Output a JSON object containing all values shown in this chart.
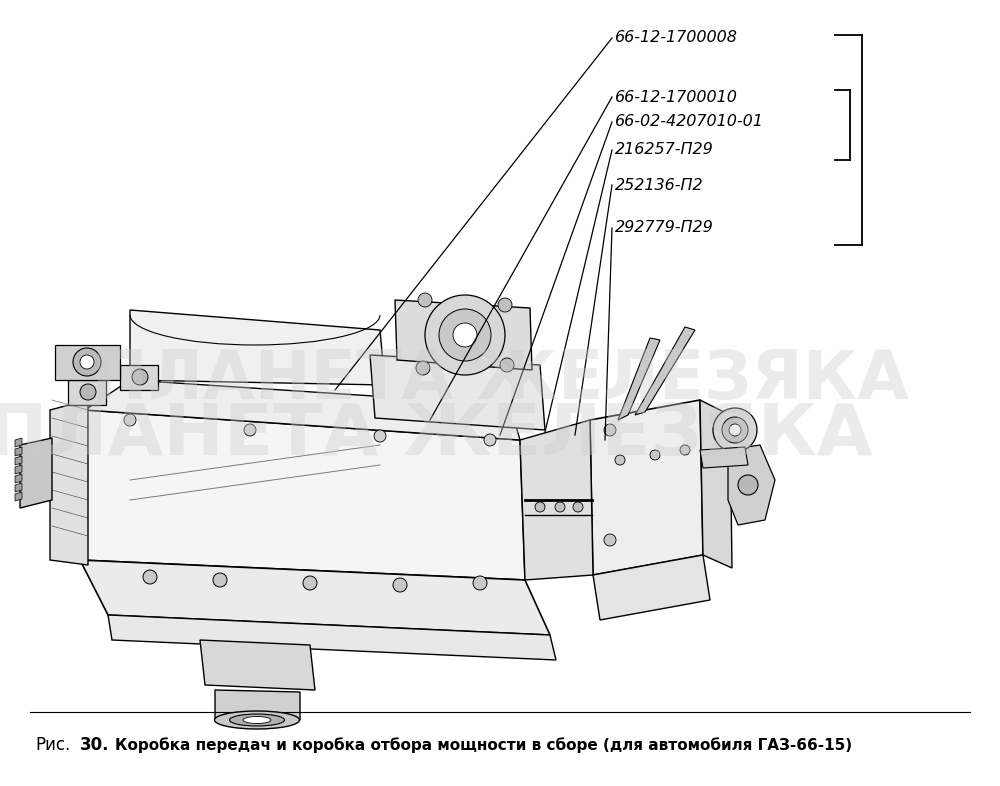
{
  "title_caption_rис": "Рис.",
  "title_caption_num": "30.",
  "title_caption_text": "Коробка передач и коробка отбора мощности в сборе (для автомобиля ГАЗ-66-15)",
  "background_color": "#ffffff",
  "part_labels": [
    "66-12-1700008",
    "66-12-1700010",
    "66-02-4207010-01",
    "216257-П29",
    "252136-П2",
    "292779-П29"
  ],
  "figsize": [
    10.0,
    7.86
  ],
  "dpi": 100,
  "watermark_text": "ПЛАНЕТА ЖЕЛЕЗЯКА",
  "watermark_color": "#cccccc",
  "watermark_alpha": 0.38
}
